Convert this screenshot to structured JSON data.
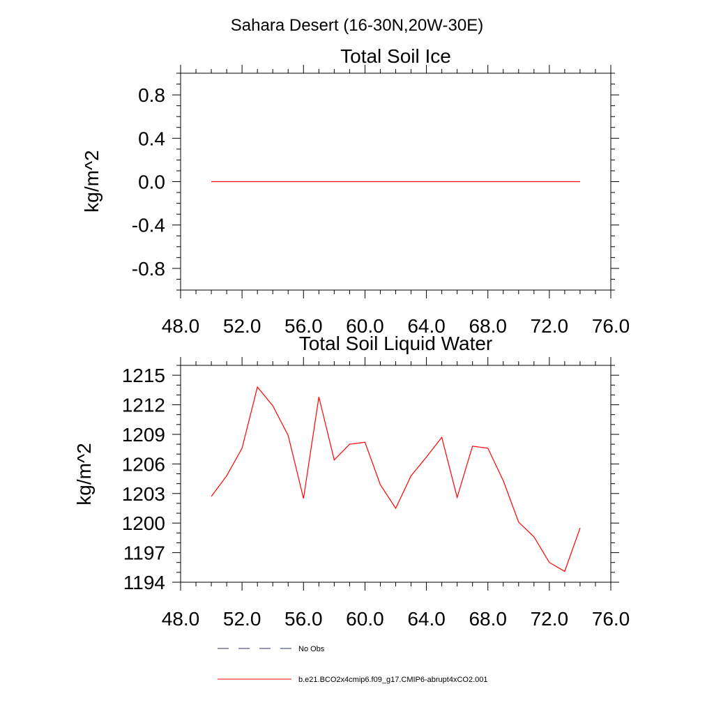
{
  "figure": {
    "suptitle": "Sahara Desert (16-30N,20W-30E)"
  },
  "chart_data": [
    {
      "type": "line",
      "title": "Total Soil Ice",
      "xlabel": "",
      "ylabel": "kg/m^2",
      "xlim": [
        48,
        76
      ],
      "ylim": [
        -1,
        1
      ],
      "xticks": [
        48,
        52,
        56,
        60,
        64,
        68,
        72,
        76
      ],
      "xtick_labels": [
        "48.0",
        "52.0",
        "56.0",
        "60.0",
        "64.0",
        "68.0",
        "72.0",
        "76.0"
      ],
      "yticks": [
        0.8,
        0.4,
        0.0,
        -0.4,
        -0.8
      ],
      "ytick_labels": [
        "0.8",
        "0.4",
        "0.0",
        "-0.4",
        "-0.8"
      ],
      "series": [
        {
          "name": "b.e21.BCO2x4cmip6.f09_g17.CMIP6-abrupt4xCO2.001",
          "color": "#ff0000",
          "x": [
            50,
            51,
            52,
            53,
            54,
            55,
            56,
            57,
            58,
            59,
            60,
            61,
            62,
            63,
            64,
            65,
            66,
            67,
            68,
            69,
            70,
            71,
            72,
            73,
            74
          ],
          "values": [
            0,
            0,
            0,
            0,
            0,
            0,
            0,
            0,
            0,
            0,
            0,
            0,
            0,
            0,
            0,
            0,
            0,
            0,
            0,
            0,
            0,
            0,
            0,
            0,
            0
          ]
        }
      ]
    },
    {
      "type": "line",
      "title": "Total Soil Liquid Water",
      "xlabel": "",
      "ylabel": "kg/m^2",
      "xlim": [
        48,
        76
      ],
      "ylim": [
        1194,
        1216
      ],
      "xticks": [
        48,
        52,
        56,
        60,
        64,
        68,
        72,
        76
      ],
      "xtick_labels": [
        "48.0",
        "52.0",
        "56.0",
        "60.0",
        "64.0",
        "68.0",
        "72.0",
        "76.0"
      ],
      "yticks": [
        1215,
        1212,
        1209,
        1206,
        1203,
        1200,
        1197,
        1194
      ],
      "ytick_labels": [
        "1215",
        "1212",
        "1209",
        "1206",
        "1203",
        "1200",
        "1197",
        "1194"
      ],
      "series": [
        {
          "name": "b.e21.BCO2x4cmip6.f09_g17.CMIP6-abrupt4xCO2.001",
          "color": "#ff0000",
          "x": [
            50,
            51,
            52,
            53,
            54,
            55,
            56,
            57,
            58,
            59,
            60,
            61,
            62,
            63,
            64,
            65,
            66,
            67,
            68,
            69,
            70,
            71,
            72,
            73,
            74
          ],
          "values": [
            1202.7,
            1204.8,
            1207.6,
            1213.8,
            1211.9,
            1208.9,
            1202.5,
            1212.8,
            1206.4,
            1208.0,
            1208.2,
            1203.9,
            1201.5,
            1204.8,
            1206.7,
            1208.7,
            1202.6,
            1207.8,
            1207.6,
            1204.3,
            1200.1,
            1198.6,
            1196.0,
            1195.1,
            1199.5
          ]
        }
      ]
    }
  ],
  "legend": {
    "entries": [
      {
        "label": "No Obs",
        "style": "dashed",
        "color": "#2b2f6e"
      },
      {
        "label": "b.e21.BCO2x4cmip6.f09_g17.CMIP6-abrupt4xCO2.001",
        "style": "solid",
        "color": "#ff0000"
      }
    ]
  }
}
